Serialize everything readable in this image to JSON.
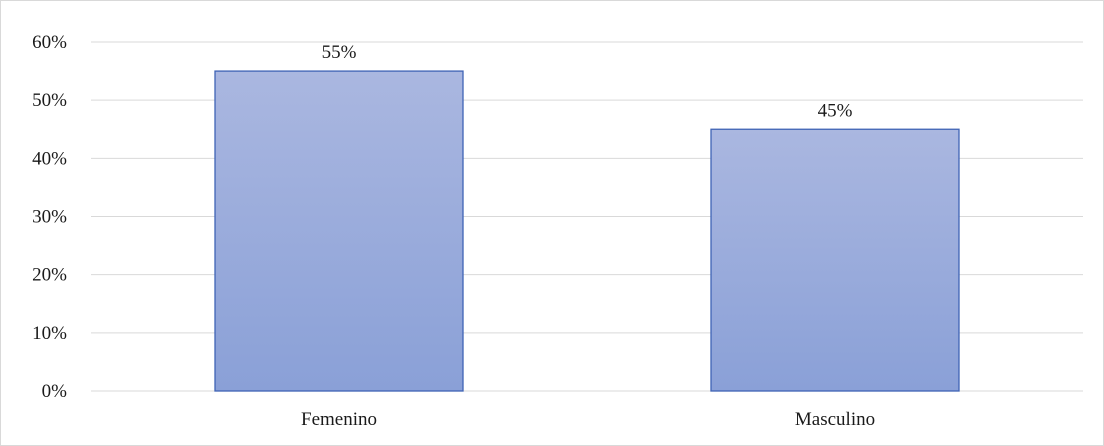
{
  "chart_data": {
    "type": "bar",
    "categories": [
      "Femenino",
      "Masculino"
    ],
    "values": [
      55,
      45
    ],
    "data_labels": [
      "55%",
      "45%"
    ],
    "title": "",
    "xlabel": "",
    "ylabel": "",
    "ylim": [
      0,
      60
    ],
    "y_ticks": [
      0,
      10,
      20,
      30,
      40,
      50,
      60
    ],
    "y_tick_labels": [
      "0%",
      "10%",
      "20%",
      "30%",
      "40%",
      "50%",
      "60%"
    ],
    "grid": true,
    "legend": "none",
    "colors": {
      "bar_top": "#aab7e0",
      "bar_bottom": "#8aa0d7",
      "bar_border": "#3f63b5",
      "gridline": "#d9d9d9"
    }
  }
}
